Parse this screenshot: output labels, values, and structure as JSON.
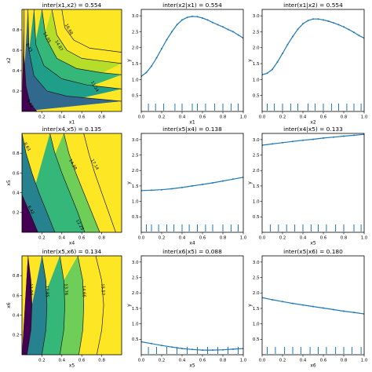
{
  "colors": {
    "line": "#1f77b4",
    "viridis": [
      "#440154",
      "#482878",
      "#3e4a89",
      "#31688e",
      "#26828e",
      "#1f9e89",
      "#35b779",
      "#6ece58",
      "#b5de2b",
      "#fde725"
    ]
  },
  "chart_data": [
    {
      "type": "contour",
      "title": "inter(x1,x2) = 0.554",
      "xlabel": "x1",
      "ylabel": "x2",
      "xlim": [
        0,
        1
      ],
      "ylim": [
        0,
        1
      ],
      "xticks": [
        "0.2",
        "0.4",
        "0.6",
        "0.8"
      ],
      "yticks": [
        "0.2",
        "0.4",
        "0.6",
        "0.8"
      ],
      "levels": [
        {
          "label": "5.62",
          "points": [
            [
              0.02,
              1.0
            ],
            [
              0.02,
              0.55
            ],
            [
              0.04,
              0.25
            ],
            [
              0.08,
              0.08
            ],
            [
              0.15,
              0.0
            ]
          ],
          "lx": 0.07,
          "ly": 0.07
        },
        {
          "label": "8.43",
          "points": [
            [
              0.06,
              1.0
            ],
            [
              0.07,
              0.6
            ],
            [
              0.12,
              0.35
            ],
            [
              0.25,
              0.2
            ],
            [
              0.45,
              0.15
            ],
            [
              1.0,
              0.1
            ]
          ],
          "lx": 0.06,
          "ly": 0.62
        },
        {
          "label": "11.24",
          "points": [
            [
              0.12,
              1.0
            ],
            [
              0.14,
              0.65
            ],
            [
              0.22,
              0.45
            ],
            [
              0.4,
              0.32
            ],
            [
              0.65,
              0.26
            ],
            [
              1.0,
              0.22
            ]
          ],
          "lx": 0.72,
          "ly": 0.24
        },
        {
          "label": "14.05",
          "points": [
            [
              0.2,
              1.0
            ],
            [
              0.24,
              0.72
            ],
            [
              0.35,
              0.52
            ],
            [
              0.55,
              0.42
            ],
            [
              0.8,
              0.38
            ],
            [
              1.0,
              0.36
            ]
          ],
          "lx": 0.24,
          "ly": 0.72
        },
        {
          "label": "14.87",
          "points": [
            [
              0.3,
              1.0
            ],
            [
              0.35,
              0.75
            ],
            [
              0.45,
              0.6
            ],
            [
              0.6,
              0.52
            ],
            [
              1.0,
              0.47
            ]
          ],
          "lx": 0.36,
          "ly": 0.64
        },
        {
          "label": "16.68",
          "points": [
            [
              0.4,
              1.0
            ],
            [
              0.43,
              0.82
            ],
            [
              0.52,
              0.7
            ],
            [
              0.68,
              0.62
            ],
            [
              1.0,
              0.58
            ]
          ],
          "lx": 0.46,
          "ly": 0.8
        }
      ]
    },
    {
      "type": "line",
      "title": "inter(x2|x1) = 0.554",
      "xlabel": "x1",
      "ylabel": "y",
      "xlim": [
        0,
        1
      ],
      "ylim": [
        0,
        3.2
      ],
      "xticks": [
        "0.0",
        "0.2",
        "0.4",
        "0.6",
        "0.8",
        "1.0"
      ],
      "yticks": [
        "0.5",
        "1.0",
        "1.5",
        "2.0",
        "2.5",
        "3.0"
      ],
      "x": [
        0.0,
        0.05,
        0.1,
        0.15,
        0.2,
        0.25,
        0.3,
        0.35,
        0.4,
        0.45,
        0.5,
        0.55,
        0.6,
        0.65,
        0.7,
        0.75,
        0.8,
        0.85,
        0.9,
        0.95,
        1.0
      ],
      "y": [
        1.1,
        1.22,
        1.42,
        1.68,
        1.97,
        2.25,
        2.5,
        2.72,
        2.87,
        2.95,
        2.98,
        2.97,
        2.93,
        2.87,
        2.79,
        2.72,
        2.65,
        2.57,
        2.5,
        2.4,
        2.3
      ],
      "rug": [
        0.07,
        0.14,
        0.22,
        0.33,
        0.4,
        0.5,
        0.55,
        0.63,
        0.72,
        0.8,
        0.88,
        0.95
      ]
    },
    {
      "type": "line",
      "title": "inter(x1|x2) = 0.554",
      "xlabel": "x2",
      "ylabel": "y",
      "xlim": [
        0,
        1
      ],
      "ylim": [
        0,
        3.2
      ],
      "xticks": [
        "0.0",
        "0.2",
        "0.4",
        "0.6",
        "0.8",
        "1.0"
      ],
      "yticks": [
        "0.5",
        "1.0",
        "1.5",
        "2.0",
        "2.5",
        "3.0"
      ],
      "x": [
        0.0,
        0.05,
        0.1,
        0.15,
        0.2,
        0.25,
        0.3,
        0.35,
        0.4,
        0.45,
        0.5,
        0.55,
        0.6,
        0.65,
        0.7,
        0.75,
        0.8,
        0.85,
        0.9,
        0.95,
        1.0
      ],
      "y": [
        1.15,
        1.2,
        1.32,
        1.55,
        1.82,
        2.1,
        2.35,
        2.58,
        2.75,
        2.85,
        2.9,
        2.9,
        2.87,
        2.83,
        2.78,
        2.72,
        2.65,
        2.57,
        2.48,
        2.38,
        2.3
      ],
      "rug": [
        0.05,
        0.12,
        0.2,
        0.28,
        0.35,
        0.45,
        0.52,
        0.6,
        0.68,
        0.75,
        0.83,
        0.9,
        0.97
      ]
    },
    {
      "type": "contour",
      "title": "inter(x4,x5) = 0.135",
      "xlabel": "x4",
      "ylabel": "x5",
      "xlim": [
        0,
        1
      ],
      "ylim": [
        0,
        1
      ],
      "xticks": [
        "0.2",
        "0.4",
        "0.6",
        "0.8"
      ],
      "yticks": [
        "0.2",
        "0.4",
        "0.6",
        "0.8"
      ],
      "levels": [
        {
          "label": "6.42",
          "points": [
            [
              0.0,
              0.38
            ],
            [
              0.06,
              0.24
            ],
            [
              0.11,
              0.12
            ],
            [
              0.16,
              0.0
            ]
          ],
          "lx": 0.08,
          "ly": 0.22
        },
        {
          "label": "8.63",
          "points": [
            [
              0.0,
              1.0
            ],
            [
              0.04,
              0.8
            ],
            [
              0.1,
              0.6
            ],
            [
              0.17,
              0.4
            ],
            [
              0.25,
              0.2
            ],
            [
              0.33,
              0.0
            ]
          ],
          "lx": 0.04,
          "ly": 0.86
        },
        {
          "label": "12.25",
          "points": [
            [
              0.28,
              1.0
            ],
            [
              0.33,
              0.8
            ],
            [
              0.4,
              0.6
            ],
            [
              0.48,
              0.4
            ],
            [
              0.56,
              0.2
            ],
            [
              0.63,
              0.0
            ]
          ],
          "lx": 0.57,
          "ly": 0.07
        },
        {
          "label": "14.38",
          "points": [
            [
              0.42,
              1.0
            ],
            [
              0.47,
              0.8
            ],
            [
              0.54,
              0.6
            ],
            [
              0.62,
              0.4
            ],
            [
              0.7,
              0.2
            ],
            [
              0.78,
              0.0
            ]
          ],
          "lx": 0.5,
          "ly": 0.68
        },
        {
          "label": "17.14",
          "points": [
            [
              0.62,
              1.0
            ],
            [
              0.67,
              0.8
            ],
            [
              0.73,
              0.6
            ],
            [
              0.8,
              0.4
            ],
            [
              0.87,
              0.2
            ],
            [
              0.94,
              0.0
            ]
          ],
          "lx": 0.72,
          "ly": 0.68
        }
      ]
    },
    {
      "type": "line",
      "title": "inter(x5|x4) = 0.138",
      "xlabel": "x4",
      "ylabel": "y",
      "xlim": [
        0,
        1
      ],
      "ylim": [
        0,
        3.2
      ],
      "xticks": [
        "0.0",
        "0.2",
        "0.4",
        "0.6",
        "0.8",
        "1.0"
      ],
      "yticks": [
        "0.5",
        "1.0",
        "1.5",
        "2.0",
        "2.5",
        "3.0"
      ],
      "x": [
        0.0,
        0.1,
        0.2,
        0.3,
        0.4,
        0.5,
        0.6,
        0.7,
        0.8,
        0.9,
        1.0
      ],
      "y": [
        1.35,
        1.36,
        1.38,
        1.41,
        1.45,
        1.5,
        1.55,
        1.6,
        1.66,
        1.72,
        1.78
      ],
      "rug": [
        0.05,
        0.1,
        0.17,
        0.25,
        0.32,
        0.4,
        0.47,
        0.55,
        0.63,
        0.7,
        0.8,
        0.88,
        0.95
      ]
    },
    {
      "type": "line",
      "title": "inter(x4|x5) = 0.133",
      "xlabel": "x5",
      "ylabel": "y",
      "xlim": [
        0,
        1
      ],
      "ylim": [
        0,
        3.2
      ],
      "xticks": [
        "0.0",
        "0.2",
        "0.4",
        "0.6",
        "0.8",
        "1.0"
      ],
      "yticks": [
        "0.5",
        "1.0",
        "1.5",
        "2.0",
        "2.5",
        "3.0"
      ],
      "x": [
        0.0,
        0.1,
        0.2,
        0.3,
        0.4,
        0.5,
        0.6,
        0.7,
        0.8,
        0.9,
        1.0
      ],
      "y": [
        2.82,
        2.86,
        2.9,
        2.94,
        2.98,
        3.01,
        3.05,
        3.08,
        3.11,
        3.14,
        3.17
      ],
      "rug": [
        0.08,
        0.16,
        0.24,
        0.32,
        0.4,
        0.48,
        0.55,
        0.63,
        0.72,
        0.8,
        0.9,
        0.97
      ]
    },
    {
      "type": "contour",
      "title": "inter(x5,x6) = 0.134",
      "xlabel": "x5",
      "ylabel": "x6",
      "xlim": [
        0,
        1
      ],
      "ylim": [
        0,
        1
      ],
      "xticks": [
        "0.2",
        "0.4",
        "0.6",
        "0.8"
      ],
      "yticks": [
        "0.2",
        "0.4",
        "0.6",
        "0.8"
      ],
      "levels": [
        {
          "label": "11.94",
          "points": [
            [
              0.06,
              1.0
            ],
            [
              0.09,
              0.75
            ],
            [
              0.1,
              0.5
            ],
            [
              0.09,
              0.25
            ],
            [
              0.05,
              0.0
            ]
          ],
          "lx": 0.08,
          "ly": 0.66
        },
        {
          "label": "12.85",
          "points": [
            [
              0.2,
              1.0
            ],
            [
              0.24,
              0.75
            ],
            [
              0.25,
              0.5
            ],
            [
              0.24,
              0.25
            ],
            [
              0.2,
              0.0
            ]
          ],
          "lx": 0.24,
          "ly": 0.64
        },
        {
          "label": "13.76",
          "points": [
            [
              0.38,
              1.0
            ],
            [
              0.42,
              0.75
            ],
            [
              0.43,
              0.5
            ],
            [
              0.42,
              0.25
            ],
            [
              0.38,
              0.0
            ]
          ],
          "lx": 0.43,
          "ly": 0.66
        },
        {
          "label": "14.66",
          "points": [
            [
              0.56,
              1.0
            ],
            [
              0.61,
              0.75
            ],
            [
              0.62,
              0.5
            ],
            [
              0.61,
              0.25
            ],
            [
              0.57,
              0.0
            ]
          ],
          "lx": 0.61,
          "ly": 0.64
        },
        {
          "label": "15.57",
          "points": [
            [
              0.74,
              1.0
            ],
            [
              0.8,
              0.75
            ],
            [
              0.82,
              0.5
            ],
            [
              0.8,
              0.25
            ],
            [
              0.75,
              0.0
            ]
          ],
          "lx": 0.8,
          "ly": 0.66
        }
      ]
    },
    {
      "type": "line",
      "title": "inter(x6|x5) = 0.088",
      "xlabel": "x5",
      "ylabel": "y",
      "xlim": [
        0,
        1
      ],
      "ylim": [
        0,
        3.2
      ],
      "xticks": [
        "0.0",
        "0.2",
        "0.4",
        "0.6",
        "0.8",
        "1.0"
      ],
      "yticks": [
        "0.5",
        "1.0",
        "1.5",
        "2.0",
        "2.5",
        "3.0"
      ],
      "x": [
        0.0,
        0.1,
        0.2,
        0.3,
        0.4,
        0.5,
        0.6,
        0.7,
        0.8,
        0.9,
        1.0
      ],
      "y": [
        0.42,
        0.36,
        0.3,
        0.25,
        0.2,
        0.17,
        0.15,
        0.15,
        0.16,
        0.18,
        0.2
      ],
      "rug": [
        0.07,
        0.15,
        0.25,
        0.35,
        0.45,
        0.55,
        0.65,
        0.75,
        0.85,
        0.95
      ]
    },
    {
      "type": "line",
      "title": "inter(x5|x6) = 0.180",
      "xlabel": "x6",
      "ylabel": "y",
      "xlim": [
        0,
        1
      ],
      "ylim": [
        0,
        3.2
      ],
      "xticks": [
        "0.0",
        "0.2",
        "0.4",
        "0.6",
        "0.8",
        "1.0"
      ],
      "yticks": [
        "0.5",
        "1.0",
        "1.5",
        "2.0",
        "2.5",
        "3.0"
      ],
      "x": [
        0.0,
        0.1,
        0.2,
        0.3,
        0.4,
        0.5,
        0.6,
        0.7,
        0.8,
        0.9,
        1.0
      ],
      "y": [
        1.85,
        1.78,
        1.72,
        1.66,
        1.61,
        1.56,
        1.51,
        1.46,
        1.41,
        1.37,
        1.32
      ],
      "rug": [
        0.05,
        0.13,
        0.22,
        0.3,
        0.38,
        0.47,
        0.55,
        0.63,
        0.72,
        0.8,
        0.88,
        0.97
      ]
    }
  ]
}
